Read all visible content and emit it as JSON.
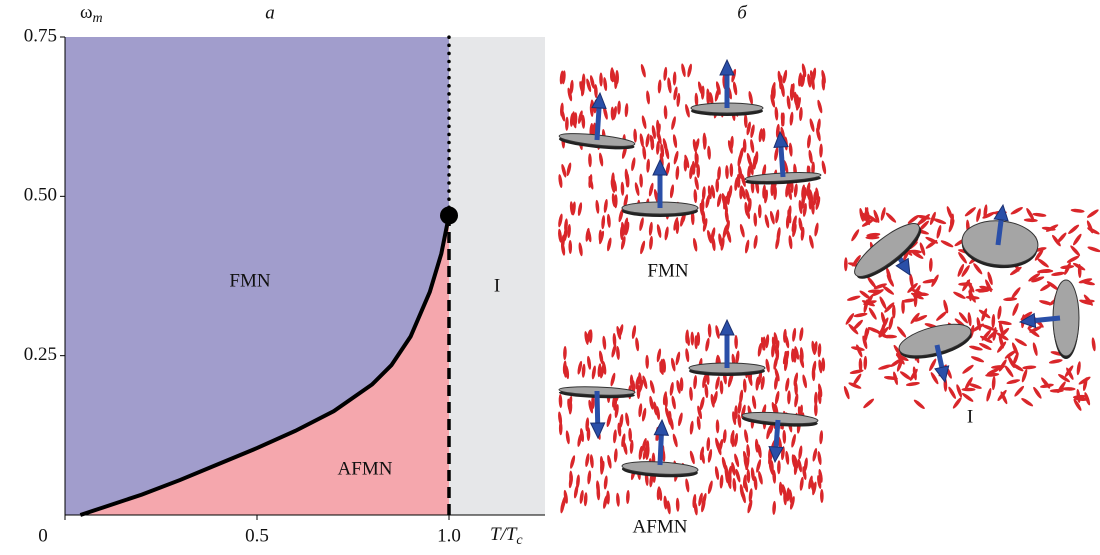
{
  "chart_data": {
    "type": "phase-diagram",
    "panel_label": "а",
    "ylabel": {
      "main": "ω",
      "sub": "m"
    },
    "xlabel": {
      "main": "T/T",
      "sub": "c"
    },
    "xlim": [
      0,
      1.25
    ],
    "ylim": [
      0,
      0.75
    ],
    "xticks": [
      0,
      0.5,
      {
        "value": 1,
        "label": "1.0"
      }
    ],
    "yticks": [
      0.25,
      {
        "value": 0.5,
        "label": "0.50"
      },
      0.75
    ],
    "curve": {
      "x": [
        0.04,
        0.1,
        0.2,
        0.3,
        0.4,
        0.5,
        0.6,
        0.7,
        0.8,
        0.85,
        0.9,
        0.95,
        0.98,
        1.0
      ],
      "y": [
        0,
        0.012,
        0.032,
        0.055,
        0.08,
        0.105,
        0.132,
        0.163,
        0.205,
        0.235,
        0.28,
        0.35,
        0.41,
        0.47
      ]
    },
    "critical_point": {
      "x": 1.0,
      "y": 0.47
    },
    "regions": [
      {
        "name": "FMN",
        "color": "#a19dcc"
      },
      {
        "name": "AFMN",
        "color": "#f5a7ad"
      },
      {
        "name": "I",
        "color": "#e6e7e9"
      }
    ]
  },
  "schematic": {
    "panel_label": "б",
    "labels": [
      "FMN",
      "AFMN",
      "I"
    ]
  }
}
